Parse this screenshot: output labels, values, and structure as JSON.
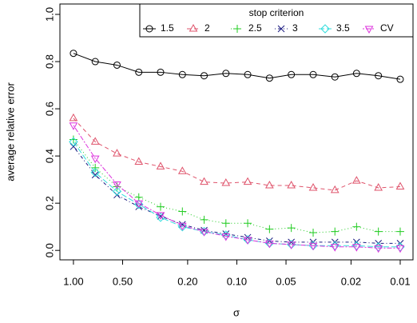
{
  "chart_data": {
    "type": "line",
    "x_label": "σ",
    "y_label": "average relative error",
    "legend_title": "stop criterion",
    "legend": "top-right",
    "x_log": true,
    "x": [
      1,
      0.7356,
      0.5412,
      0.3981,
      0.2929,
      0.2154,
      0.1585,
      0.1166,
      0.0858,
      0.0631,
      0.0464,
      0.0341,
      0.0251,
      0.0185,
      0.0136,
      0.01
    ],
    "xlim": [
      1.21,
      0.00835
    ],
    "xticks": [
      {
        "value": 1,
        "label": "1.00"
      },
      {
        "value": 0.5,
        "label": "0.50"
      },
      {
        "value": 0.2,
        "label": "0.20"
      },
      {
        "value": 0.1,
        "label": "0.10"
      },
      {
        "value": 0.05,
        "label": "0.05"
      },
      {
        "value": 0.02,
        "label": "0.02"
      },
      {
        "value": 0.01,
        "label": "0.01"
      }
    ],
    "ylim": [
      -0.04,
      1.044
    ],
    "yticks": [
      {
        "value": 0,
        "label": "0.0"
      },
      {
        "value": 0.2,
        "label": "0.2"
      },
      {
        "value": 0.4,
        "label": "0.4"
      },
      {
        "value": 0.6,
        "label": "0.6"
      },
      {
        "value": 0.8,
        "label": "0.8"
      },
      {
        "value": 1,
        "label": "1.0"
      }
    ],
    "series": [
      {
        "name": "1.5",
        "color": "#000000",
        "marker": "circle",
        "dash": "none",
        "values": [
          0.835,
          0.8,
          0.785,
          0.755,
          0.755,
          0.745,
          0.74,
          0.75,
          0.745,
          0.73,
          0.745,
          0.745,
          0.735,
          0.75,
          0.74,
          0.725
        ]
      },
      {
        "name": "2",
        "color": "#df536b",
        "marker": "triangle-up",
        "dash": "5,4",
        "values": [
          0.56,
          0.46,
          0.41,
          0.375,
          0.355,
          0.335,
          0.29,
          0.285,
          0.29,
          0.275,
          0.275,
          0.265,
          0.255,
          0.295,
          0.265,
          0.27
        ]
      },
      {
        "name": "2.5",
        "color": "#22cc22",
        "marker": "plus",
        "dash": "1,3",
        "values": [
          0.47,
          0.35,
          0.27,
          0.225,
          0.185,
          0.165,
          0.13,
          0.115,
          0.115,
          0.09,
          0.095,
          0.075,
          0.08,
          0.1,
          0.08,
          0.08
        ]
      },
      {
        "name": "3",
        "color": "#1a1a80",
        "marker": "cross",
        "dash": "1,3,4,3",
        "values": [
          0.44,
          0.32,
          0.235,
          0.185,
          0.145,
          0.11,
          0.085,
          0.07,
          0.055,
          0.04,
          0.035,
          0.035,
          0.035,
          0.035,
          0.03,
          0.03
        ]
      },
      {
        "name": "3.5",
        "color": "#33dddd",
        "marker": "diamond",
        "dash": "7,3",
        "values": [
          0.46,
          0.33,
          0.25,
          0.195,
          0.14,
          0.1,
          0.08,
          0.065,
          0.045,
          0.03,
          0.025,
          0.02,
          0.02,
          0.02,
          0.015,
          0.015
        ]
      },
      {
        "name": "CV",
        "color": "#dd33dd",
        "marker": "triangle-down",
        "dash": "2,2,6,2",
        "values": [
          0.53,
          0.39,
          0.28,
          0.2,
          0.15,
          0.105,
          0.08,
          0.06,
          0.045,
          0.03,
          0.025,
          0.02,
          0.015,
          0.015,
          0.01,
          0.01
        ]
      }
    ]
  }
}
